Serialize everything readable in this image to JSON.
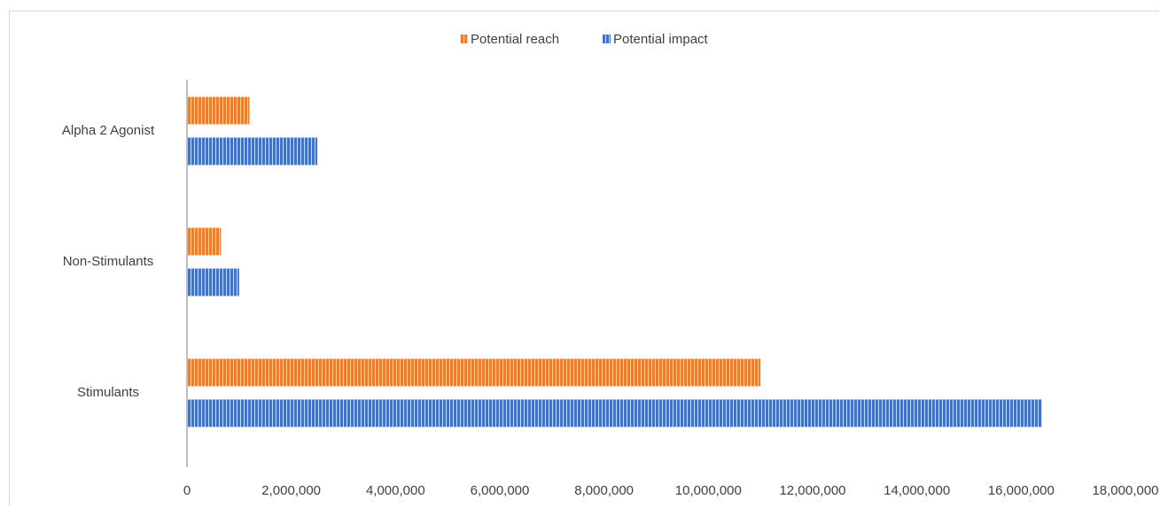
{
  "chart_data": {
    "type": "bar",
    "orientation": "horizontal",
    "title": "",
    "xlabel": "",
    "ylabel": "",
    "categories": [
      "Alpha 2 Agonist",
      "Non-Stimulants",
      "Stimulants"
    ],
    "series": [
      {
        "name": "Potential reach",
        "color": "#ED7D31",
        "values": [
          1200000,
          650000,
          11000000
        ]
      },
      {
        "name": "Potential impact",
        "color": "#4472C4",
        "values": [
          2500000,
          1000000,
          16400000
        ]
      }
    ],
    "xlim": [
      0,
      18000000
    ],
    "x_ticks": [
      0,
      2000000,
      4000000,
      6000000,
      8000000,
      10000000,
      12000000,
      14000000,
      16000000,
      18000000
    ],
    "x_tick_labels": [
      "0",
      "2,000,000",
      "4,000,000",
      "6,000,000",
      "8,000,000",
      "10,000,000",
      "12,000,000",
      "14,000,000",
      "16,000,000",
      "18,000,000"
    ],
    "grid": false,
    "legend_position": "top-center",
    "bar_pattern": "vertical-stripes"
  }
}
